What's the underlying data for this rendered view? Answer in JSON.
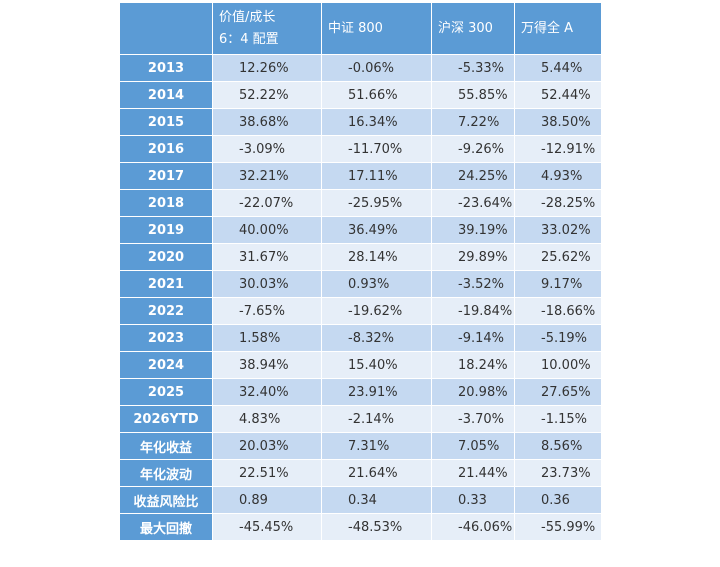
{
  "table": {
    "header": [
      "价值/成长\n6：4 配置",
      "中证 800",
      "沪深 300",
      "万得全 A"
    ],
    "rows": [
      [
        "2013",
        "12.26%",
        "-0.06%",
        "-5.33%",
        "5.44%"
      ],
      [
        "2014",
        "52.22%",
        "51.66%",
        "55.85%",
        "52.44%"
      ],
      [
        "2015",
        "38.68%",
        "16.34%",
        "7.22%",
        "38.50%"
      ],
      [
        "2016",
        "-3.09%",
        "-11.70%",
        "-9.26%",
        "-12.91%"
      ],
      [
        "2017",
        "32.21%",
        "17.11%",
        "24.25%",
        "4.93%"
      ],
      [
        "2018",
        "-22.07%",
        "-25.95%",
        "-23.64%",
        "-28.25%"
      ],
      [
        "2019",
        "40.00%",
        "36.49%",
        "39.19%",
        "33.02%"
      ],
      [
        "2020",
        "31.67%",
        "28.14%",
        "29.89%",
        "25.62%"
      ],
      [
        "2021",
        "30.03%",
        "0.93%",
        "-3.52%",
        "9.17%"
      ],
      [
        "2022",
        "-7.65%",
        "-19.62%",
        "-19.84%",
        "-18.66%"
      ],
      [
        "2023",
        "1.58%",
        "-8.32%",
        "-9.14%",
        "-5.19%"
      ],
      [
        "2024",
        "38.94%",
        "15.40%",
        "18.24%",
        "10.00%"
      ],
      [
        "2025",
        "32.40%",
        "23.91%",
        "20.98%",
        "27.65%"
      ],
      [
        "2026YTD",
        "4.83%",
        "-2.14%",
        "-3.70%",
        "-1.15%"
      ],
      [
        "年化收益",
        "20.03%",
        "7.31%",
        "7.05%",
        "8.56%"
      ],
      [
        "年化波动",
        "22.51%",
        "21.64%",
        "21.44%",
        "23.73%"
      ],
      [
        "收益风险比",
        "0.89",
        "0.34",
        "0.33",
        "0.36"
      ],
      [
        "最大回撤",
        "-45.45%",
        "-48.53%",
        "-46.06%",
        "-55.99%"
      ]
    ]
  }
}
